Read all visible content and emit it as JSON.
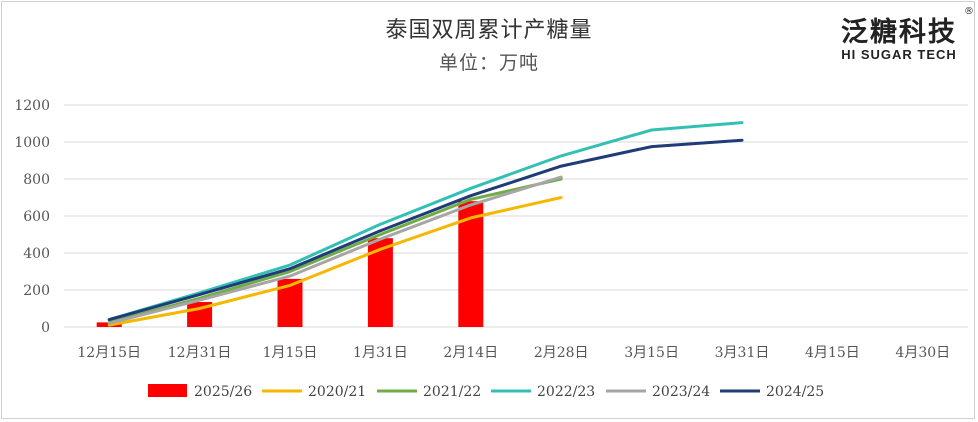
{
  "chart_data": {
    "type": "bar+line",
    "title": "泰国双周累计产糖量",
    "subtitle": "单位：万吨",
    "categories": [
      "12月15日",
      "12月31日",
      "1月15日",
      "1月31日",
      "2月14日",
      "2月28日",
      "3月15日",
      "3月31日",
      "4月15日",
      "4月30日"
    ],
    "ylim": [
      0,
      1200
    ],
    "yticks": [
      0,
      200,
      400,
      600,
      800,
      1000,
      1200
    ],
    "grid": true,
    "legend_position": "bottom",
    "bar_series": {
      "name": "2025/26",
      "color": "#ff0000",
      "values": [
        25,
        135,
        260,
        480,
        680,
        null,
        null,
        null,
        null,
        null
      ]
    },
    "series": [
      {
        "name": "2020/21",
        "color": "#f5b800",
        "values": [
          10,
          100,
          225,
          420,
          590,
          700,
          null,
          null,
          null,
          null
        ]
      },
      {
        "name": "2021/22",
        "color": "#70ad47",
        "values": [
          25,
          155,
          300,
          500,
          690,
          800,
          null,
          null,
          null,
          null
        ]
      },
      {
        "name": "2022/23",
        "color": "#33c0b4",
        "values": [
          40,
          185,
          335,
          555,
          750,
          925,
          1065,
          1105,
          null,
          null
        ]
      },
      {
        "name": "2023/24",
        "color": "#a6a6a6",
        "values": [
          20,
          145,
          275,
          475,
          660,
          810,
          null,
          null,
          null,
          null
        ]
      },
      {
        "name": "2024/25",
        "color": "#1f3b78",
        "values": [
          40,
          175,
          315,
          520,
          710,
          870,
          975,
          1010,
          null,
          null
        ]
      }
    ]
  },
  "logo": {
    "cn": "泛糖科技",
    "en": "HI SUGAR TECH",
    "reg": "®"
  }
}
